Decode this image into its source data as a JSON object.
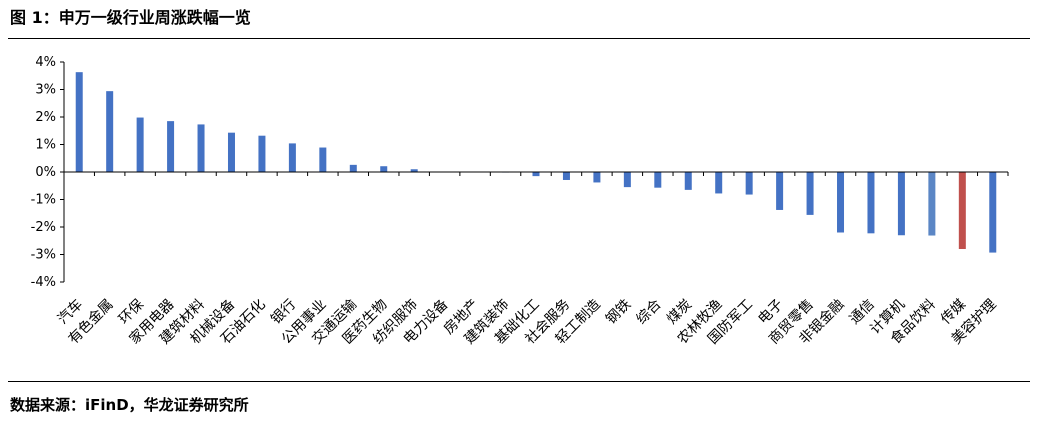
{
  "figure": {
    "title": "图 1：申万一级行业周涨跌幅一览",
    "source": "数据来源：iFinD，华龙证券研究所"
  },
  "colors": {
    "bar": "#4472C4",
    "bar_alt": "#5B86C5",
    "highlight": "#C0504D",
    "axis": "#000000"
  },
  "chart_data": {
    "type": "bar",
    "title": "",
    "xlabel": "",
    "ylabel": "",
    "ylim": [
      -4,
      4
    ],
    "y_ticks": [
      "-4%",
      "-3%",
      "-2%",
      "-1%",
      "0%",
      "1%",
      "2%",
      "3%",
      "4%"
    ],
    "y_tick_values": [
      -4,
      -3,
      -2,
      -1,
      0,
      1,
      2,
      3,
      4
    ],
    "unit": "%",
    "grid": false,
    "legend": "none",
    "categories": [
      "汽车",
      "有色金属",
      "环保",
      "家用电器",
      "建筑材料",
      "机械设备",
      "石油石化",
      "银行",
      "公用事业",
      "交通运输",
      "医药生物",
      "纺织服饰",
      "电力设备",
      "房地产",
      "建筑装饰",
      "基础化工",
      "社会服务",
      "轻工制造",
      "钢铁",
      "综合",
      "煤炭",
      "农林牧渔",
      "国防军工",
      "电子",
      "商贸零售",
      "非银金融",
      "通信",
      "计算机",
      "食品饮料",
      "传媒",
      "美容护理"
    ],
    "values": [
      3.63,
      2.94,
      1.98,
      1.85,
      1.73,
      1.43,
      1.32,
      1.04,
      0.89,
      0.26,
      0.21,
      0.1,
      0.0,
      0.0,
      -0.02,
      -0.15,
      -0.29,
      -0.38,
      -0.55,
      -0.57,
      -0.65,
      -0.78,
      -0.82,
      -1.38,
      -1.56,
      -2.2,
      -2.23,
      -2.3,
      -2.31,
      -2.8,
      -2.93
    ],
    "highlight_category": "传媒",
    "alt_color_category": "食品饮料"
  }
}
